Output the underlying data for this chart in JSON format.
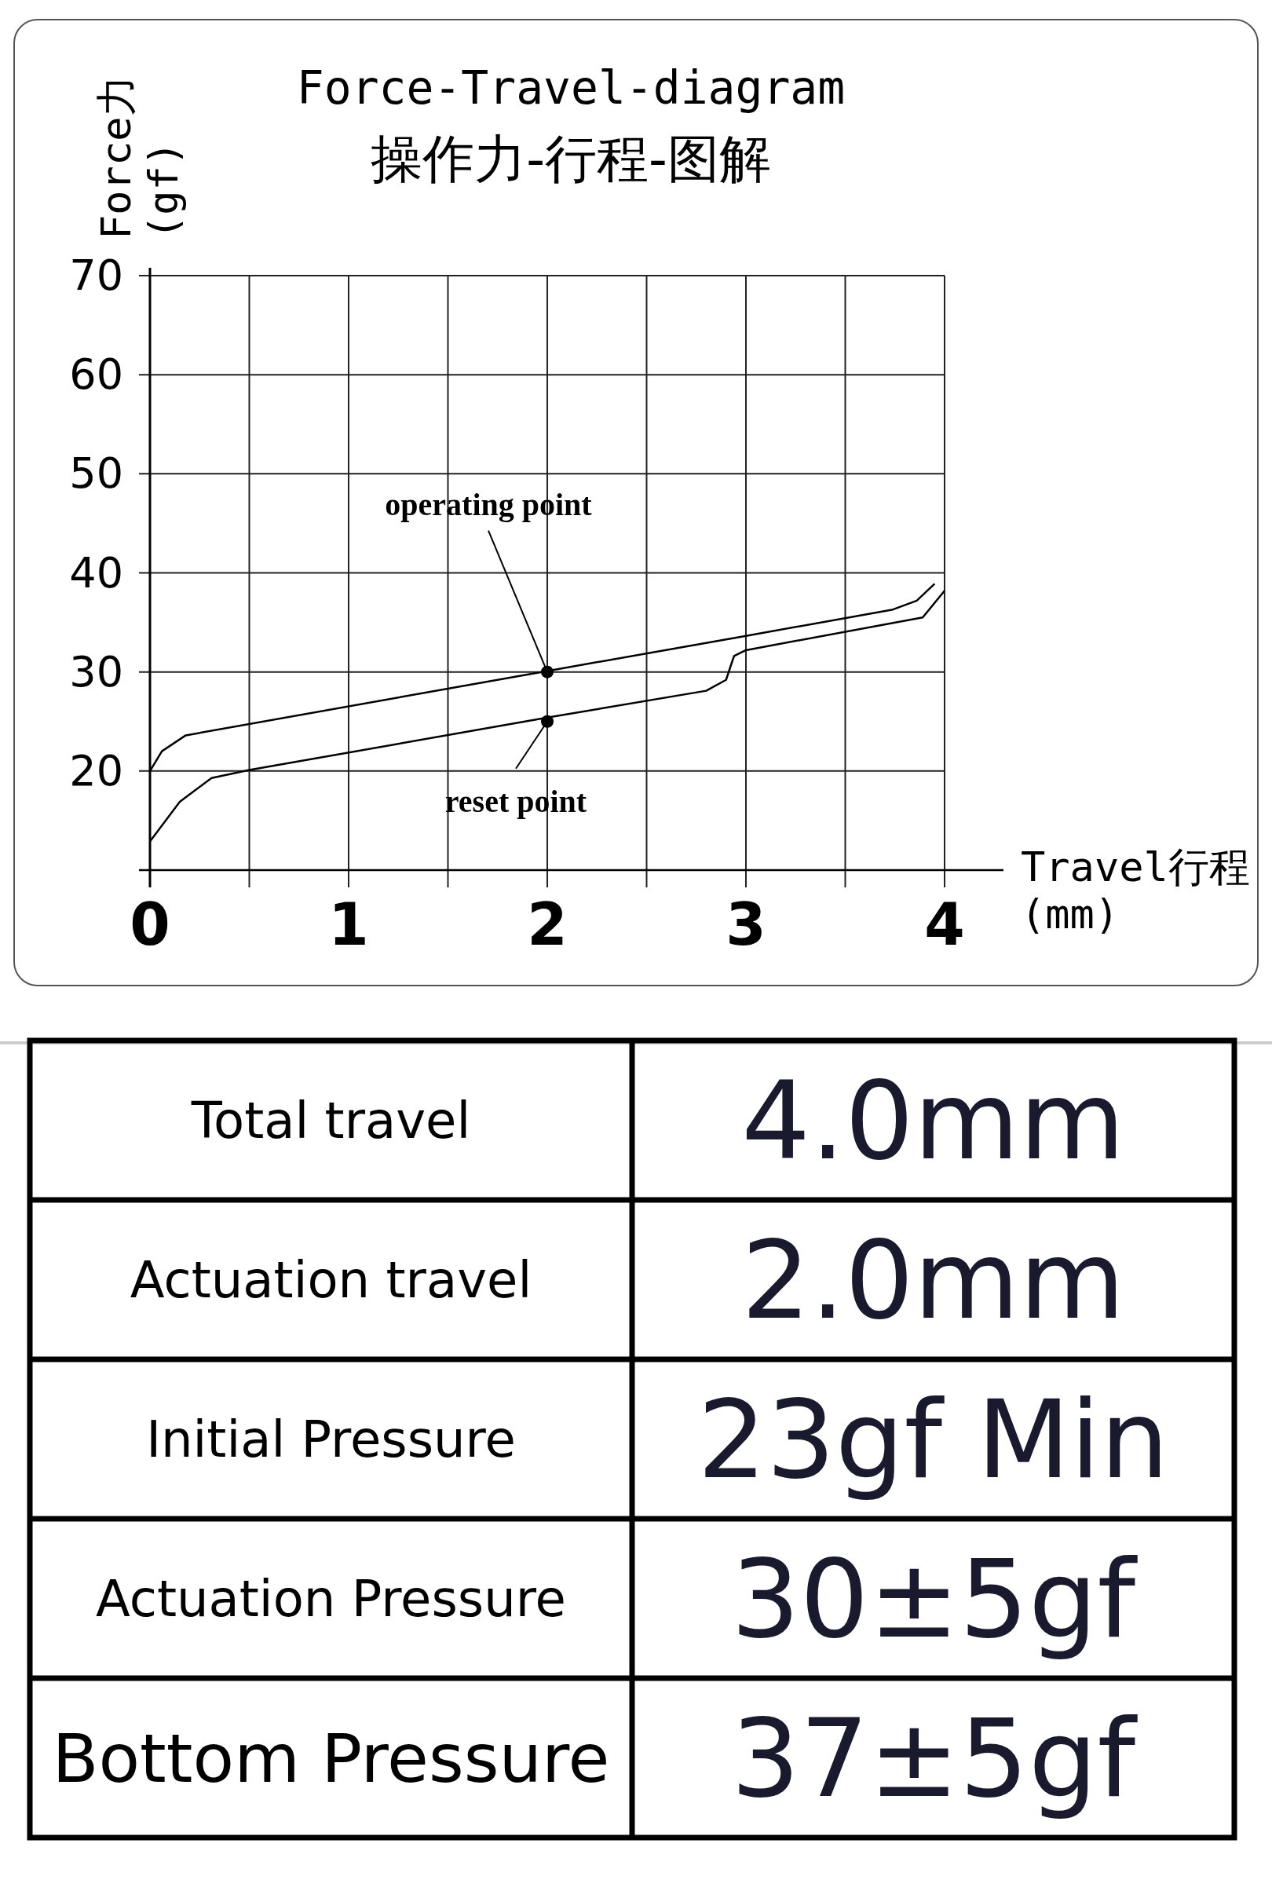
{
  "chart_data": [
    {
      "type": "line",
      "title": "Force-Travel-diagram",
      "subtitle": "操作力-行程-图解",
      "xlabel": "Travel行程\n(mm)",
      "ylabel": "Force力\n(gf)",
      "series": [
        {
          "color": "#000000",
          "x": [
            0,
            0.06,
            0.18,
            2,
            2.99,
            3.74,
            3.86,
            3.95
          ],
          "values": [
            20,
            22,
            23.6,
            30.1,
            33.6,
            36.3,
            37.2,
            38.9
          ]
        },
        {
          "color": "#000000",
          "x": [
            0,
            0.15,
            0.31,
            0.5,
            2,
            2.8,
            2.9,
            2.94,
            3.0,
            3.89,
            4.0
          ],
          "values": [
            12.9,
            16.9,
            19.3,
            20.1,
            25.4,
            28.1,
            29.2,
            31.6,
            32.2,
            35.5,
            38.2
          ]
        },
        {
          "type": "scatter",
          "marker": "circle",
          "color": "#000000",
          "x": [
            2,
            2
          ],
          "values": [
            30,
            25
          ]
        }
      ],
      "xlim": [
        0,
        4
      ],
      "ylim": [
        10,
        70
      ],
      "xticks": [
        0,
        {
          "value": 0.5,
          "label": null
        },
        1,
        {
          "value": 1.5,
          "label": null
        },
        2,
        {
          "value": 2.5,
          "label": null
        },
        3,
        {
          "value": 3.5,
          "label": null
        },
        4
      ],
      "yticks": [
        {
          "value": 10,
          "label": null
        },
        20,
        30,
        40,
        50,
        60,
        70
      ],
      "grid": true,
      "annotations": [
        {
          "text": "operating point",
          "x": 2,
          "y": 30
        },
        {
          "text": "reset point",
          "x": 2,
          "y": 25
        }
      ]
    },
    {
      "type": "other",
      "annotations": [
        "Total travel",
        "4.0mm",
        "Actuation travel",
        "2.0mm",
        "Initial Pressure",
        "23gf Min",
        "Actuation Pressure",
        "30±5gf",
        "Bottom Pressure",
        "37±5gf"
      ]
    }
  ]
}
